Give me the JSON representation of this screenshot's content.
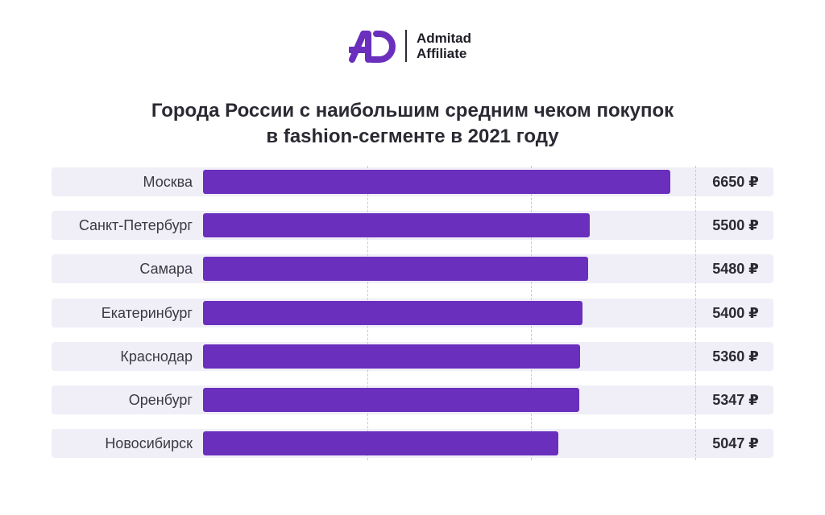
{
  "brand": {
    "line1": "Admitad",
    "line2": "Affiliate",
    "mark_color": "#6a2fbd"
  },
  "chart_data": {
    "type": "bar",
    "orientation": "horizontal",
    "title_lines": [
      "Города России с наибольшим средним чеком покупок",
      "в fashion-сегменте в 2021 году"
    ],
    "categories": [
      "Москва",
      "Санкт-Петербург",
      "Самара",
      "Екатеринбург",
      "Краснодар",
      "Оренбург",
      "Новосибирск"
    ],
    "values": [
      6650,
      5500,
      5480,
      5400,
      5360,
      5347,
      5047
    ],
    "value_labels": [
      "6650 ₽",
      "5500 ₽",
      "5480 ₽",
      "5400 ₽",
      "5360 ₽",
      "5347 ₽",
      "5047 ₽"
    ],
    "xlim": [
      0,
      7000
    ],
    "grid_values": [
      2333,
      4667,
      7000
    ],
    "bar_color": "#6a2fbd",
    "xlabel": "",
    "ylabel": ""
  }
}
